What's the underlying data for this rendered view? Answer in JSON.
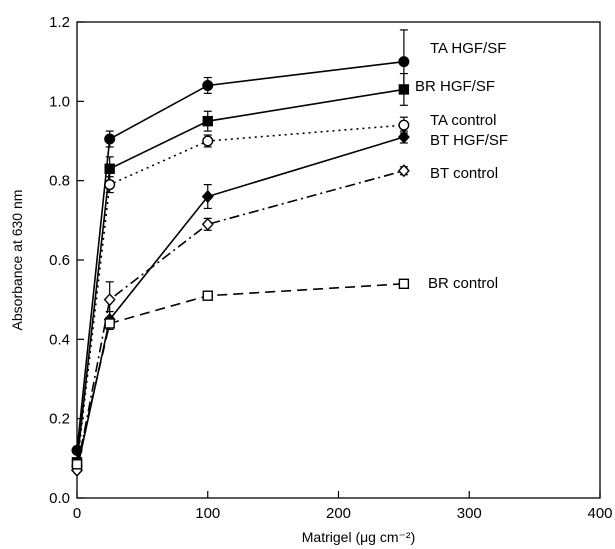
{
  "chart_data": {
    "type": "line",
    "xlabel": "Matrigel (μg cm⁻²)",
    "ylabel": "Absorbance at 630 nm",
    "xlim": [
      0,
      400
    ],
    "ylim": [
      0,
      1.2
    ],
    "xticks": [
      0,
      100,
      200,
      300,
      400
    ],
    "yticks": [
      0.0,
      0.2,
      0.4,
      0.6,
      0.8,
      1.0,
      1.2
    ],
    "grid": false,
    "x": [
      0,
      25,
      100,
      250
    ],
    "series": [
      {
        "name": "TA HGF/SF",
        "values": [
          0.12,
          0.905,
          1.04,
          1.1
        ],
        "errors": [
          0,
          0.02,
          0.02,
          0.08
        ],
        "marker": "circle-filled",
        "line": "solid"
      },
      {
        "name": "BR HGF/SF",
        "values": [
          0.09,
          0.83,
          0.95,
          1.03
        ],
        "errors": [
          0,
          0.03,
          0.025,
          0.04
        ],
        "marker": "square-filled",
        "line": "solid"
      },
      {
        "name": "TA control",
        "values": [
          0.08,
          0.79,
          0.9,
          0.94
        ],
        "errors": [
          0,
          0.02,
          0.015,
          0.02
        ],
        "marker": "circle-open",
        "line": "dotted"
      },
      {
        "name": "BT HGF/SF",
        "values": [
          0.07,
          0.45,
          0.76,
          0.91
        ],
        "errors": [
          0,
          0.02,
          0.03,
          0.015
        ],
        "marker": "diamond-filled",
        "line": "solid"
      },
      {
        "name": "BT control",
        "values": [
          0.07,
          0.5,
          0.69,
          0.825
        ],
        "errors": [
          0,
          0.045,
          0.015,
          0.01
        ],
        "marker": "diamond-open",
        "line": "dashdot"
      },
      {
        "name": "BR control",
        "values": [
          0.085,
          0.44,
          0.51,
          0.54
        ],
        "errors": [
          0,
          0.015,
          0.01,
          0.01
        ],
        "marker": "square-open",
        "line": "dashed"
      }
    ]
  }
}
